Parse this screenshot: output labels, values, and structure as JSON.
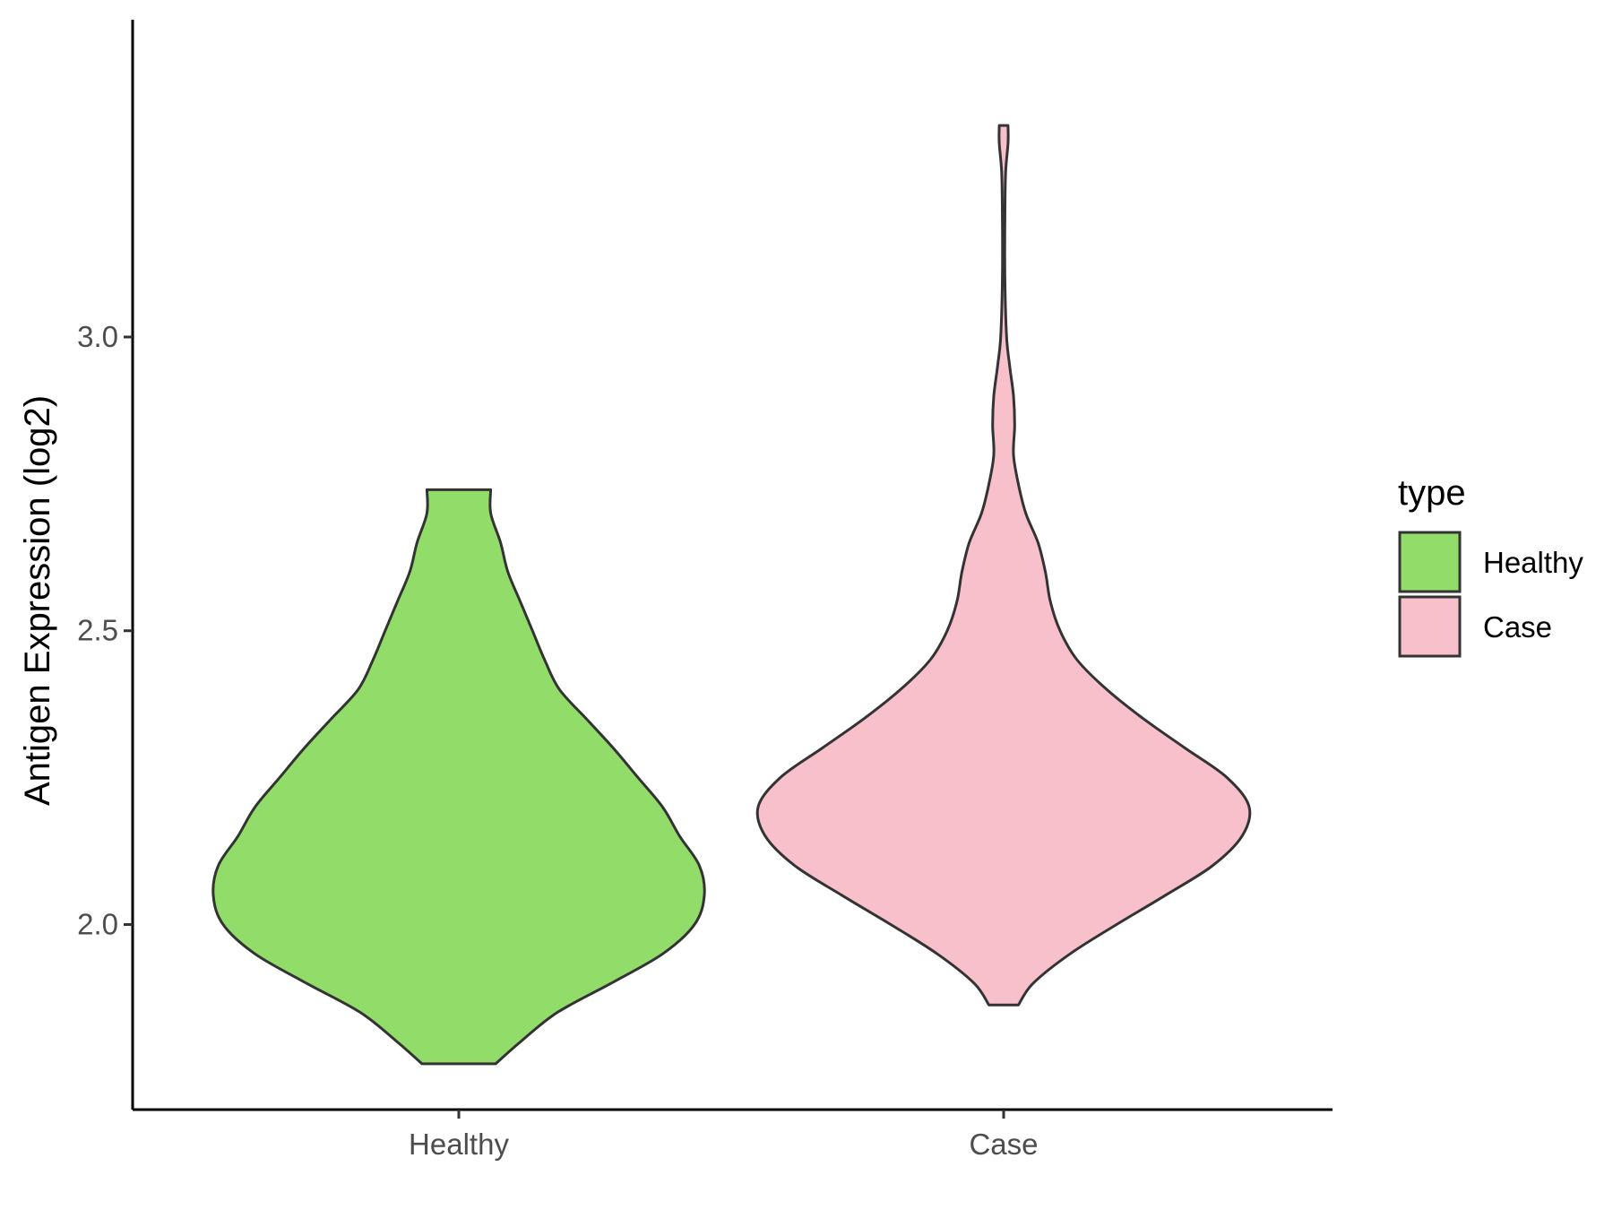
{
  "chart_data": {
    "type": "violin",
    "title": "",
    "xlabel": "",
    "ylabel": "Antigen Expression (log2)",
    "ylim": [
      1.685,
      3.54
    ],
    "yticks": [
      {
        "value": 2.0,
        "label": "2.0"
      },
      {
        "value": 2.5,
        "label": "2.5"
      },
      {
        "value": 3.0,
        "label": "3.0"
      }
    ],
    "categories": [
      "Healthy",
      "Case"
    ],
    "grid": false,
    "legend": {
      "title": "type",
      "position": "right",
      "entries": [
        {
          "label": "Healthy",
          "color": "#92dc6a"
        },
        {
          "label": "Case",
          "color": "#f7c0cb"
        }
      ]
    },
    "series": [
      {
        "name": "Healthy",
        "color": "#92dc6a",
        "min": 1.763,
        "max": 2.74,
        "density_profile": [
          [
            1.763,
            0.15
          ],
          [
            1.8,
            0.25
          ],
          [
            1.85,
            0.4
          ],
          [
            1.9,
            0.62
          ],
          [
            1.95,
            0.83
          ],
          [
            2.0,
            0.96
          ],
          [
            2.05,
            1.0
          ],
          [
            2.1,
            0.98
          ],
          [
            2.15,
            0.9
          ],
          [
            2.2,
            0.83
          ],
          [
            2.25,
            0.73
          ],
          [
            2.3,
            0.63
          ],
          [
            2.35,
            0.52
          ],
          [
            2.4,
            0.41
          ],
          [
            2.45,
            0.35
          ],
          [
            2.5,
            0.3
          ],
          [
            2.55,
            0.25
          ],
          [
            2.6,
            0.2
          ],
          [
            2.65,
            0.17
          ],
          [
            2.7,
            0.13
          ],
          [
            2.74,
            0.13
          ]
        ]
      },
      {
        "name": "Case",
        "color": "#f7c0cb",
        "min": 1.863,
        "max": 3.36,
        "density_profile": [
          [
            1.863,
            0.06
          ],
          [
            1.9,
            0.12
          ],
          [
            1.95,
            0.27
          ],
          [
            2.0,
            0.46
          ],
          [
            2.05,
            0.66
          ],
          [
            2.1,
            0.85
          ],
          [
            2.15,
            0.97
          ],
          [
            2.2,
            1.0
          ],
          [
            2.25,
            0.91
          ],
          [
            2.3,
            0.74
          ],
          [
            2.35,
            0.57
          ],
          [
            2.4,
            0.42
          ],
          [
            2.45,
            0.3
          ],
          [
            2.5,
            0.23
          ],
          [
            2.55,
            0.19
          ],
          [
            2.6,
            0.17
          ],
          [
            2.65,
            0.14
          ],
          [
            2.7,
            0.09
          ],
          [
            2.75,
            0.06
          ],
          [
            2.8,
            0.04
          ],
          [
            2.85,
            0.045
          ],
          [
            2.9,
            0.04
          ],
          [
            2.95,
            0.025
          ],
          [
            3.0,
            0.012
          ],
          [
            3.1,
            0.005
          ],
          [
            3.2,
            0.005
          ],
          [
            3.28,
            0.008
          ],
          [
            3.33,
            0.018
          ],
          [
            3.36,
            0.018
          ]
        ]
      }
    ]
  }
}
